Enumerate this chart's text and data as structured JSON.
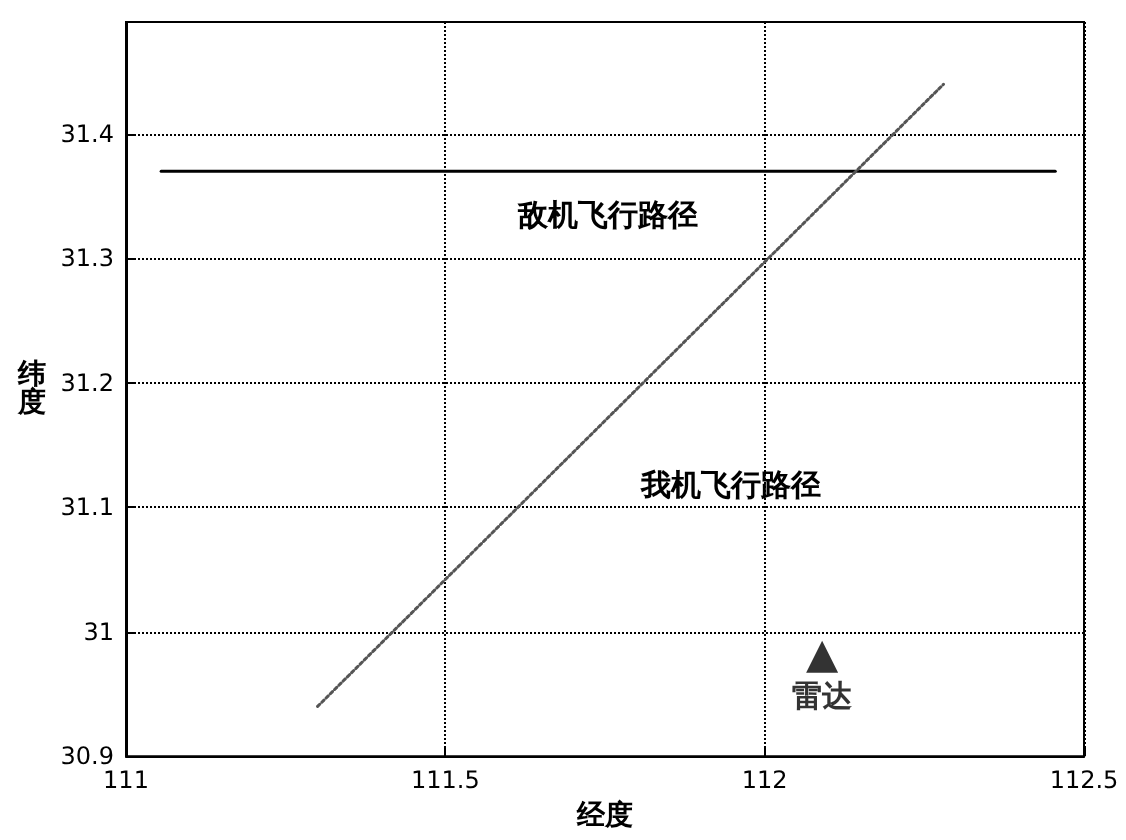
{
  "chart_data": {
    "type": "line",
    "xlabel": "经度",
    "ylabel": "纬度",
    "xlim": [
      111,
      112.5
    ],
    "xticks": [
      111,
      111.5,
      112,
      112.5
    ],
    "ylim": [
      30.9,
      31.49
    ],
    "yticks": [
      30.9,
      31,
      31.1,
      31.2,
      31.3,
      31.4
    ],
    "grid": true,
    "series": [
      {
        "name": "敌机飞行路径",
        "color": "#000000",
        "x": [
          111.055,
          112.455
        ],
        "values": [
          31.37,
          31.37
        ],
        "line_style": "solid",
        "marker": "none"
      },
      {
        "name": "我机飞行路径",
        "color": "#555555",
        "x": [
          111.3,
          112.28
        ],
        "values": [
          30.94,
          31.44
        ],
        "line_style": "dotted",
        "marker": "none"
      },
      {
        "name": "雷达",
        "type": "scatter",
        "color": "#000000",
        "x": [
          112.09
        ],
        "values": [
          30.98
        ],
        "marker": "triangle"
      }
    ]
  }
}
